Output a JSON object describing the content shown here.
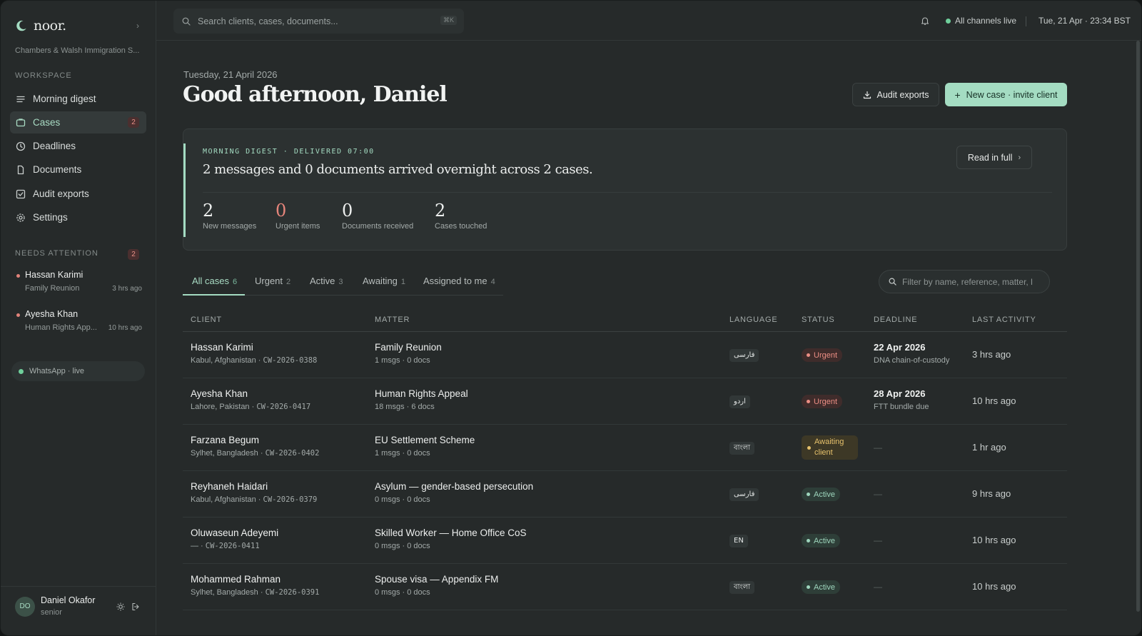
{
  "brand": {
    "name": "noor.",
    "firm": "Chambers & Walsh Immigration S..."
  },
  "sidebar": {
    "workspace_label": "WORKSPACE",
    "items": [
      {
        "label": "Morning digest",
        "icon": "list-icon"
      },
      {
        "label": "Cases",
        "icon": "folder-icon",
        "badge": "2"
      },
      {
        "label": "Deadlines",
        "icon": "clock-icon"
      },
      {
        "label": "Documents",
        "icon": "document-icon"
      },
      {
        "label": "Audit exports",
        "icon": "checkbox-icon"
      },
      {
        "label": "Settings",
        "icon": "gear-icon"
      }
    ],
    "attention_label": "NEEDS ATTENTION",
    "attention_count": "2",
    "attention": [
      {
        "name": "Hassan Karimi",
        "matter": "Family Reunion",
        "time": "3 hrs ago"
      },
      {
        "name": "Ayesha Khan",
        "matter": "Human Rights App...",
        "time": "10 hrs ago"
      }
    ],
    "whatsapp": "WhatsApp · live"
  },
  "user": {
    "initials": "DO",
    "name": "Daniel Okafor",
    "role": "senior"
  },
  "topbar": {
    "search_placeholder": "Search clients, cases, documents...",
    "shortcut": "⌘K",
    "channels": "All channels live",
    "datetime": "Tue, 21 Apr · 23:34 BST"
  },
  "header": {
    "date": "Tuesday, 21 April 2026",
    "greeting": "Good afternoon, Daniel",
    "audit_button": "Audit exports",
    "new_case_button": "New case · invite client"
  },
  "digest": {
    "kicker": "MORNING DIGEST · DELIVERED 07:00",
    "headline": "2 messages and 0 documents arrived overnight across 2 cases.",
    "read_full": "Read in full",
    "stats": [
      {
        "value": "2",
        "label": "New messages"
      },
      {
        "value": "0",
        "label": "Urgent items"
      },
      {
        "value": "0",
        "label": "Documents received"
      },
      {
        "value": "2",
        "label": "Cases touched"
      }
    ]
  },
  "tabs": [
    {
      "label": "All cases",
      "count": "6"
    },
    {
      "label": "Urgent",
      "count": "2"
    },
    {
      "label": "Active",
      "count": "3"
    },
    {
      "label": "Awaiting",
      "count": "1"
    },
    {
      "label": "Assigned to me",
      "count": "4"
    }
  ],
  "filter_placeholder": "Filter by name, reference, matter, l",
  "table": {
    "headers": [
      "CLIENT",
      "MATTER",
      "LANGUAGE",
      "STATUS",
      "DEADLINE",
      "LAST ACTIVITY"
    ],
    "rows": [
      {
        "name": "Hassan Karimi",
        "location": "Kabul, Afghanistan · ",
        "ref": "CW-2026-0388",
        "matter": "Family Reunion",
        "counts": "1 msgs · 0 docs",
        "lang": "فارسی",
        "status": "Urgent",
        "deadline": "22 Apr 2026",
        "deadline_note": "DNA chain-of-custody",
        "activity": "3 hrs ago"
      },
      {
        "name": "Ayesha Khan",
        "location": "Lahore, Pakistan · ",
        "ref": "CW-2026-0417",
        "matter": "Human Rights Appeal",
        "counts": "18 msgs · 6 docs",
        "lang": "اردو",
        "status": "Urgent",
        "deadline": "28 Apr 2026",
        "deadline_note": "FTT bundle due",
        "activity": "10 hrs ago"
      },
      {
        "name": "Farzana Begum",
        "location": "Sylhet, Bangladesh · ",
        "ref": "CW-2026-0402",
        "matter": "EU Settlement Scheme",
        "counts": "1 msgs · 0 docs",
        "lang": "বাংলা",
        "status": "Awaiting client",
        "deadline": "—",
        "deadline_note": "",
        "activity": "1 hr ago"
      },
      {
        "name": "Reyhaneh Haidari",
        "location": "Kabul, Afghanistan · ",
        "ref": "CW-2026-0379",
        "matter": "Asylum — gender-based persecution",
        "counts": "0 msgs · 0 docs",
        "lang": "فارسی",
        "status": "Active",
        "deadline": "—",
        "deadline_note": "",
        "activity": "9 hrs ago"
      },
      {
        "name": "Oluwaseun Adeyemi",
        "location": "— · ",
        "ref": "CW-2026-0411",
        "matter": "Skilled Worker — Home Office CoS",
        "counts": "0 msgs · 0 docs",
        "lang": "EN",
        "status": "Active",
        "deadline": "—",
        "deadline_note": "",
        "activity": "10 hrs ago"
      },
      {
        "name": "Mohammed Rahman",
        "location": "Sylhet, Bangladesh · ",
        "ref": "CW-2026-0391",
        "matter": "Spouse visa — Appendix FM",
        "counts": "0 msgs · 0 docs",
        "lang": "বাংলা",
        "status": "Active",
        "deadline": "—",
        "deadline_note": "",
        "activity": "10 hrs ago"
      }
    ]
  },
  "colors": {
    "accent": "#a4dcc2",
    "urgent": "#ec8e84",
    "awaiting": "#e6c16b",
    "background": "#262a2a"
  }
}
